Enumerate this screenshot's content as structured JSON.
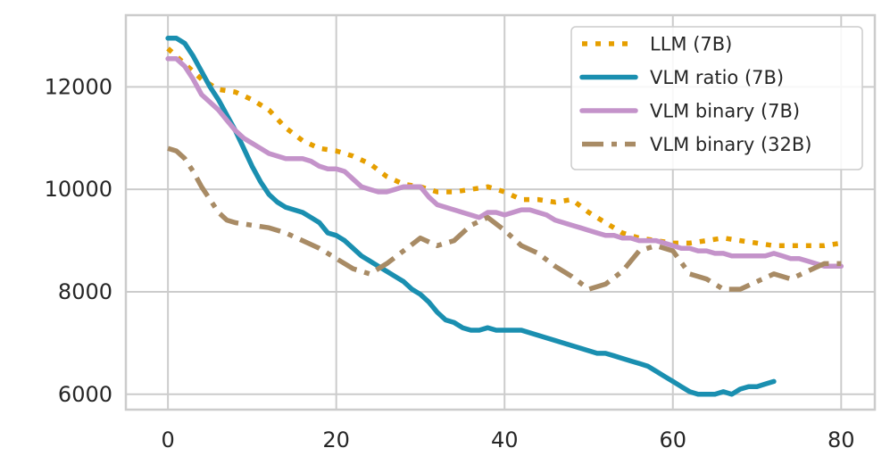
{
  "chart_data": {
    "type": "line",
    "title": "",
    "xlabel": "",
    "ylabel": "",
    "xlim": [
      -5,
      84
    ],
    "ylim": [
      5700,
      13400
    ],
    "xticks": [
      0,
      20,
      40,
      60,
      80
    ],
    "yticks": [
      6000,
      8000,
      10000,
      12000
    ],
    "xtick_labels": [
      "0",
      "20",
      "40",
      "60",
      "80"
    ],
    "ytick_labels": [
      "6000",
      "8000",
      "10000",
      "12000"
    ],
    "grid": true,
    "legend_position": "top-right",
    "series": [
      {
        "name": "LLM (7B)",
        "color": "#e69f00",
        "style": "dotted",
        "x": [
          0,
          2,
          4,
          6,
          8,
          10,
          12,
          14,
          16,
          18,
          20,
          22,
          24,
          26,
          28,
          30,
          32,
          34,
          36,
          38,
          40,
          42,
          44,
          46,
          48,
          50,
          52,
          54,
          56,
          58,
          60,
          62,
          64,
          66,
          68,
          70,
          72,
          74,
          76,
          78,
          80
        ],
        "values": [
          12750,
          12450,
          12150,
          11950,
          11900,
          11750,
          11550,
          11200,
          10950,
          10800,
          10750,
          10650,
          10500,
          10250,
          10100,
          10050,
          9950,
          9950,
          10000,
          10050,
          9950,
          9800,
          9800,
          9750,
          9800,
          9550,
          9350,
          9150,
          9050,
          9000,
          8950,
          8950,
          9000,
          9050,
          9000,
          8950,
          8900,
          8900,
          8900,
          8900,
          8950
        ]
      },
      {
        "name": "VLM ratio (7B)",
        "color": "#1a8fb0",
        "style": "solid",
        "x": [
          0,
          1,
          2,
          3,
          4,
          5,
          6,
          7,
          8,
          9,
          10,
          11,
          12,
          13,
          14,
          15,
          16,
          17,
          18,
          19,
          20,
          21,
          22,
          23,
          24,
          25,
          26,
          27,
          28,
          29,
          30,
          31,
          32,
          33,
          34,
          35,
          36,
          37,
          38,
          39,
          40,
          41,
          42,
          43,
          44,
          45,
          46,
          47,
          48,
          49,
          50,
          51,
          52,
          53,
          54,
          55,
          56,
          57,
          58,
          59,
          60,
          61,
          62,
          63,
          64,
          65,
          66,
          67,
          68,
          69,
          70,
          71,
          72
        ],
        "values": [
          12950,
          12950,
          12850,
          12600,
          12300,
          12000,
          11750,
          11450,
          11150,
          10800,
          10450,
          10150,
          9900,
          9750,
          9650,
          9600,
          9550,
          9450,
          9350,
          9150,
          9100,
          9000,
          8850,
          8700,
          8600,
          8500,
          8400,
          8300,
          8200,
          8050,
          7950,
          7800,
          7600,
          7450,
          7400,
          7300,
          7250,
          7250,
          7300,
          7250,
          7250,
          7250,
          7250,
          7200,
          7150,
          7100,
          7050,
          7000,
          6950,
          6900,
          6850,
          6800,
          6800,
          6750,
          6700,
          6650,
          6600,
          6550,
          6450,
          6350,
          6250,
          6150,
          6050,
          6000,
          6000,
          6000,
          6050,
          6000,
          6100,
          6150,
          6150,
          6200,
          6250
        ]
      },
      {
        "name": "VLM binary (7B)",
        "color": "#c493ca",
        "style": "solid",
        "x": [
          0,
          1,
          2,
          3,
          4,
          5,
          6,
          7,
          8,
          9,
          10,
          11,
          12,
          13,
          14,
          15,
          16,
          17,
          18,
          19,
          20,
          21,
          22,
          23,
          24,
          25,
          26,
          27,
          28,
          29,
          30,
          31,
          32,
          33,
          34,
          35,
          36,
          37,
          38,
          39,
          40,
          41,
          42,
          43,
          44,
          45,
          46,
          47,
          48,
          49,
          50,
          51,
          52,
          53,
          54,
          55,
          56,
          57,
          58,
          59,
          60,
          61,
          62,
          63,
          64,
          65,
          66,
          67,
          68,
          69,
          70,
          71,
          72,
          73,
          74,
          75,
          76,
          77,
          78,
          79,
          80
        ],
        "values": [
          12550,
          12550,
          12400,
          12150,
          11850,
          11700,
          11550,
          11350,
          11150,
          11000,
          10900,
          10800,
          10700,
          10650,
          10600,
          10600,
          10600,
          10550,
          10450,
          10400,
          10400,
          10350,
          10200,
          10050,
          10000,
          9950,
          9950,
          10000,
          10050,
          10050,
          10050,
          9850,
          9700,
          9650,
          9600,
          9550,
          9500,
          9450,
          9550,
          9550,
          9500,
          9550,
          9600,
          9600,
          9550,
          9500,
          9400,
          9350,
          9300,
          9250,
          9200,
          9150,
          9100,
          9100,
          9050,
          9050,
          9000,
          9000,
          9000,
          8950,
          8900,
          8850,
          8850,
          8800,
          8800,
          8750,
          8750,
          8700,
          8700,
          8700,
          8700,
          8700,
          8750,
          8700,
          8650,
          8650,
          8600,
          8550,
          8500,
          8500,
          8500
        ]
      },
      {
        "name": "VLM binary (32B)",
        "color": "#a88b65",
        "style": "dashdot",
        "x": [
          0,
          1,
          2,
          3,
          4,
          5,
          6,
          7,
          8,
          10,
          12,
          14,
          16,
          18,
          20,
          22,
          24,
          26,
          28,
          30,
          32,
          34,
          36,
          38,
          40,
          42,
          44,
          46,
          48,
          50,
          52,
          54,
          56,
          58,
          60,
          62,
          64,
          66,
          68,
          70,
          72,
          74,
          76,
          78,
          80
        ],
        "values": [
          10800,
          10750,
          10600,
          10350,
          10050,
          9800,
          9550,
          9400,
          9350,
          9300,
          9250,
          9150,
          9000,
          8850,
          8650,
          8450,
          8350,
          8550,
          8800,
          9050,
          8900,
          9000,
          9300,
          9450,
          9200,
          8900,
          8750,
          8500,
          8300,
          8050,
          8150,
          8400,
          8800,
          8900,
          8800,
          8350,
          8250,
          8050,
          8050,
          8200,
          8350,
          8250,
          8400,
          8550,
          8550
        ]
      }
    ]
  }
}
